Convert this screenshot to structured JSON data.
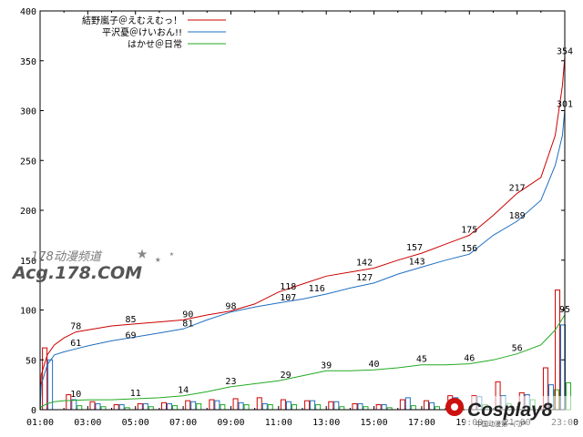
{
  "chart_data": {
    "type": "line",
    "title": "",
    "xlabel": "",
    "ylabel": "",
    "ylim": [
      0,
      400
    ],
    "xlim": [
      1,
      23
    ],
    "y_ticks": [
      0,
      50,
      100,
      150,
      200,
      250,
      300,
      350,
      400
    ],
    "x_tick_labels": [
      "01:00",
      "03:00",
      "05:00",
      "07:00",
      "09:00",
      "11:00",
      "13:00",
      "15:00",
      "17:00",
      "19:00",
      "21:00",
      "23:00"
    ],
    "grid": false,
    "legend": "top-left",
    "series": [
      {
        "name": "結野嵐子＠えむえむっ！",
        "color": "#cc0000",
        "points": [
          [
            1,
            0
          ],
          [
            1.05,
            35
          ],
          [
            1.3,
            55
          ],
          [
            1.6,
            65
          ],
          [
            2,
            72
          ],
          [
            2.5,
            78
          ],
          [
            3,
            80
          ],
          [
            4,
            84
          ],
          [
            5,
            86
          ],
          [
            6,
            88
          ],
          [
            7,
            90
          ],
          [
            8,
            95
          ],
          [
            9,
            99
          ],
          [
            10,
            106
          ],
          [
            11,
            118
          ],
          [
            12,
            126
          ],
          [
            13,
            134
          ],
          [
            14,
            138
          ],
          [
            15,
            142
          ],
          [
            16,
            150
          ],
          [
            17,
            157
          ],
          [
            18,
            166
          ],
          [
            19,
            175
          ],
          [
            20,
            195
          ],
          [
            21,
            217
          ],
          [
            22,
            233
          ],
          [
            22.6,
            275
          ],
          [
            22.9,
            325
          ],
          [
            23,
            354
          ]
        ],
        "labels": [
          [
            2.5,
            78,
            "78"
          ],
          [
            4.8,
            85,
            "85"
          ],
          [
            7.2,
            90,
            "90"
          ],
          [
            11.4,
            118,
            "118"
          ],
          [
            14.6,
            142,
            "142"
          ],
          [
            16.7,
            157,
            "157"
          ],
          [
            19,
            175,
            "175"
          ],
          [
            21,
            217,
            "217"
          ],
          [
            23,
            354,
            "354"
          ],
          [
            23,
            301,
            "301"
          ]
        ]
      },
      {
        "name": "平沢憂＠けいおん!!",
        "color": "#1f6fc0",
        "points": [
          [
            1,
            0
          ],
          [
            1.05,
            25
          ],
          [
            1.3,
            45
          ],
          [
            1.6,
            55
          ],
          [
            2,
            58
          ],
          [
            2.5,
            61
          ],
          [
            3,
            64
          ],
          [
            4,
            69
          ],
          [
            5,
            73
          ],
          [
            6,
            77
          ],
          [
            7,
            81
          ],
          [
            8,
            90
          ],
          [
            9,
            98
          ],
          [
            10,
            103
          ],
          [
            11,
            107
          ],
          [
            12,
            111
          ],
          [
            13,
            116
          ],
          [
            14,
            122
          ],
          [
            15,
            127
          ],
          [
            16,
            136
          ],
          [
            17,
            143
          ],
          [
            18,
            150
          ],
          [
            19,
            156
          ],
          [
            20,
            175
          ],
          [
            21,
            189
          ],
          [
            22,
            210
          ],
          [
            22.6,
            245
          ],
          [
            22.9,
            275
          ],
          [
            23,
            301
          ]
        ],
        "labels": [
          [
            2.5,
            61,
            "61"
          ],
          [
            4.8,
            69,
            "69"
          ],
          [
            7.2,
            81,
            "81"
          ],
          [
            9,
            98,
            "98"
          ],
          [
            11.4,
            107,
            "107"
          ],
          [
            12.6,
            116,
            "116"
          ],
          [
            14.6,
            127,
            "127"
          ],
          [
            16.8,
            143,
            "143"
          ],
          [
            19,
            156,
            "156"
          ],
          [
            21,
            189,
            "189"
          ]
        ]
      },
      {
        "name": "はかせ＠日常",
        "color": "#22aa22",
        "points": [
          [
            1,
            0
          ],
          [
            1.05,
            3
          ],
          [
            1.3,
            6
          ],
          [
            1.6,
            8
          ],
          [
            2,
            9
          ],
          [
            3,
            10
          ],
          [
            4,
            10
          ],
          [
            5,
            11
          ],
          [
            6,
            12
          ],
          [
            7,
            14
          ],
          [
            8,
            18
          ],
          [
            9,
            23
          ],
          [
            10,
            26
          ],
          [
            11,
            29
          ],
          [
            12,
            34
          ],
          [
            13,
            39
          ],
          [
            14,
            39
          ],
          [
            15,
            40
          ],
          [
            16,
            42
          ],
          [
            17,
            45
          ],
          [
            18,
            45
          ],
          [
            19,
            46
          ],
          [
            20,
            50
          ],
          [
            21,
            56
          ],
          [
            22,
            65
          ],
          [
            22.6,
            80
          ],
          [
            23,
            95
          ]
        ],
        "labels": [
          [
            2.5,
            10,
            "10"
          ],
          [
            5,
            11,
            "11"
          ],
          [
            7,
            14,
            "14"
          ],
          [
            9,
            23,
            "23"
          ],
          [
            11.3,
            29,
            "29"
          ],
          [
            13,
            39,
            "39"
          ],
          [
            15,
            40,
            "40"
          ],
          [
            17,
            45,
            "45"
          ],
          [
            19,
            46,
            "46"
          ],
          [
            21,
            56,
            "56"
          ],
          [
            23,
            95,
            "95"
          ]
        ]
      }
    ],
    "bars": [
      {
        "x": 1.1,
        "values": [
          62,
          50,
          0
        ]
      },
      {
        "x": 2.1,
        "values": [
          15,
          10,
          4
        ]
      },
      {
        "x": 3.1,
        "values": [
          8,
          6,
          3
        ]
      },
      {
        "x": 4.1,
        "values": [
          5,
          5,
          2
        ]
      },
      {
        "x": 5.1,
        "values": [
          6,
          6,
          3
        ]
      },
      {
        "x": 6.1,
        "values": [
          7,
          6,
          4
        ]
      },
      {
        "x": 7.1,
        "values": [
          9,
          8,
          6
        ]
      },
      {
        "x": 8.1,
        "values": [
          10,
          9,
          5
        ]
      },
      {
        "x": 9.1,
        "values": [
          11,
          7,
          5
        ]
      },
      {
        "x": 10.1,
        "values": [
          12,
          6,
          5
        ]
      },
      {
        "x": 11.1,
        "values": [
          10,
          8,
          5
        ]
      },
      {
        "x": 12.1,
        "values": [
          9,
          9,
          5
        ]
      },
      {
        "x": 13.1,
        "values": [
          8,
          8,
          3
        ]
      },
      {
        "x": 14.1,
        "values": [
          6,
          6,
          3
        ]
      },
      {
        "x": 15.1,
        "values": [
          5,
          5,
          2
        ]
      },
      {
        "x": 16.1,
        "values": [
          10,
          12,
          4
        ]
      },
      {
        "x": 17.1,
        "values": [
          9,
          7,
          3
        ]
      },
      {
        "x": 18.1,
        "values": [
          14,
          12,
          3
        ]
      },
      {
        "x": 19.1,
        "values": [
          14,
          13,
          5
        ]
      },
      {
        "x": 20.1,
        "values": [
          28,
          14,
          6
        ]
      },
      {
        "x": 21.1,
        "values": [
          17,
          15,
          10
        ]
      },
      {
        "x": 22.1,
        "values": [
          42,
          25,
          20
        ]
      },
      {
        "x": 22.6,
        "values": [
          120,
          85,
          27
        ]
      }
    ]
  },
  "watermark": {
    "line1": "178动漫频道",
    "line2": "Acg.178.COM",
    "logo_text": "Cosplay8",
    "logo_sub": "中国动漫第一门户"
  }
}
